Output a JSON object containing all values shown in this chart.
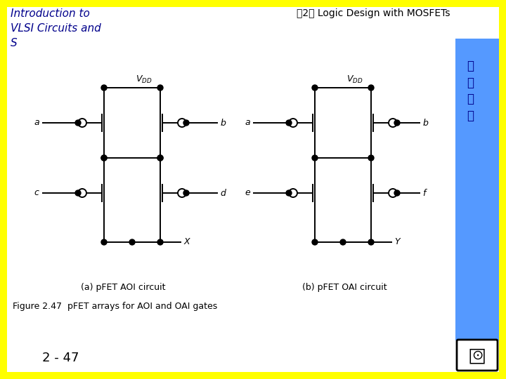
{
  "bg_color": "#FFFF00",
  "inner_bg": "#FFFFFF",
  "title_left": "Introduction to\nVLSI Circuits and\nS",
  "title_right": "第2章 Logic Design with MOSFETs",
  "title_color": "#00008B",
  "caption_a": "(a) pFET AOI circuit",
  "caption_b": "(b) pFET OAI circuit",
  "figure_caption": "Figure 2.47  pFET arrays for AOI and OAI gates",
  "page_number": "2 - 47",
  "right_sidebar_color": "#5599FF",
  "sidebar_text_color": "#00008B"
}
